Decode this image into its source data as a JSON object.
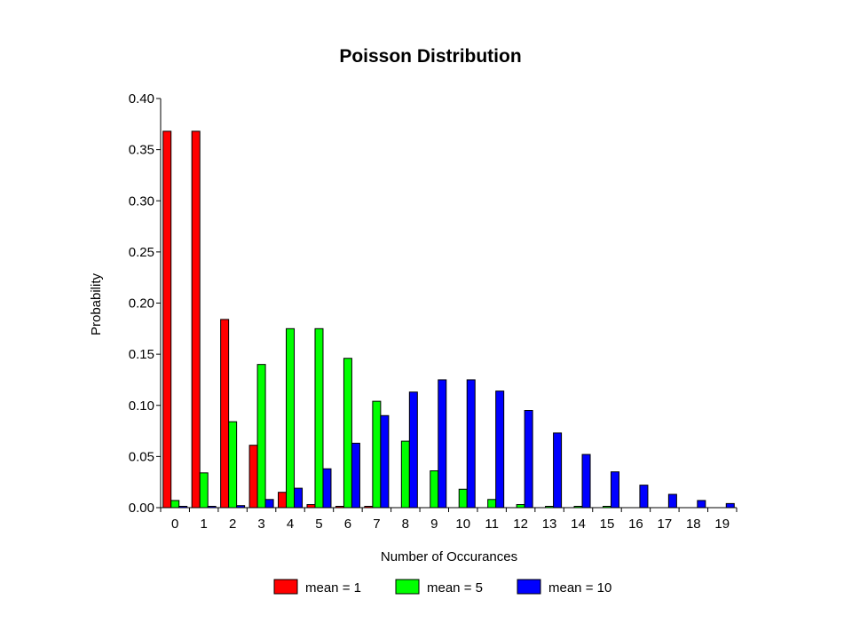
{
  "chart_data": {
    "type": "bar",
    "title": "Poisson Distribution",
    "xlabel": "Number of Occurances",
    "ylabel": "Probability",
    "ylim": [
      0,
      0.4
    ],
    "yticks": [
      "0.00",
      "0.05",
      "0.10",
      "0.15",
      "0.20",
      "0.25",
      "0.30",
      "0.35",
      "0.40"
    ],
    "categories": [
      "0",
      "1",
      "2",
      "3",
      "4",
      "5",
      "6",
      "7",
      "8",
      "9",
      "10",
      "11",
      "12",
      "13",
      "14",
      "15",
      "16",
      "17",
      "18",
      "19"
    ],
    "legend_position": "bottom",
    "grid": false,
    "series": [
      {
        "name": "mean = 1",
        "color": "#ff0000",
        "values": [
          0.368,
          0.368,
          0.184,
          0.061,
          0.015,
          0.003,
          0.0005,
          0.0001,
          0,
          0,
          0,
          0,
          0,
          0,
          0,
          0,
          0,
          0,
          0,
          0
        ]
      },
      {
        "name": "mean = 5",
        "color": "#00ff00",
        "values": [
          0.007,
          0.034,
          0.084,
          0.14,
          0.175,
          0.175,
          0.146,
          0.104,
          0.065,
          0.036,
          0.018,
          0.008,
          0.003,
          0.001,
          0.0005,
          0.0002,
          0,
          0,
          0,
          0
        ]
      },
      {
        "name": "mean = 10",
        "color": "#0000ff",
        "values": [
          5e-05,
          0.0005,
          0.002,
          0.008,
          0.019,
          0.038,
          0.063,
          0.09,
          0.113,
          0.125,
          0.125,
          0.114,
          0.095,
          0.073,
          0.052,
          0.035,
          0.022,
          0.013,
          0.007,
          0.004
        ]
      }
    ]
  }
}
